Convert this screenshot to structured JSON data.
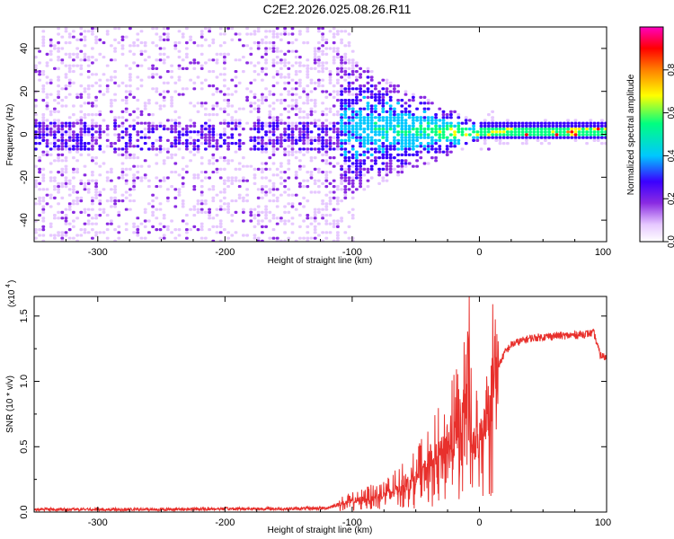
{
  "title": "C2E2.2026.025.08.26.R11",
  "chart_data": [
    {
      "type": "heatmap",
      "title": "C2E2.2026.025.08.26.R11",
      "xlabel": "Height of straight line (km)",
      "ylabel": "Frequency (Hz)",
      "xlim": [
        -350,
        100
      ],
      "ylim": [
        -50,
        50
      ],
      "x_ticks": [
        -300,
        -200,
        -100,
        0,
        100
      ],
      "y_ticks": [
        -40,
        -20,
        0,
        20,
        40
      ],
      "x_tick_labels": [
        "-300",
        "-200",
        "-100",
        "0",
        "100"
      ],
      "y_tick_labels": [
        "-40",
        "-20",
        "0",
        "20",
        "40"
      ],
      "colorbar": {
        "label": "Normalized spectral amplitude",
        "range": [
          0,
          1
        ],
        "ticks": [
          0.0,
          0.2,
          0.4,
          0.6,
          0.8
        ],
        "tick_labels": [
          "0.0",
          "0.2",
          "0.4",
          "0.6",
          "0.8"
        ],
        "colormap": [
          "#ffffff",
          "#e6c8ff",
          "#8a2be2",
          "#3a00ff",
          "#00c8ff",
          "#00ff80",
          "#ffff00",
          "#ff8000",
          "#ff0000",
          "#ff00c0"
        ]
      },
      "features": {
        "dense_noise_range_km": [
          -350,
          -110
        ],
        "narrowing_band_range_km": [
          -110,
          0
        ],
        "carrier_frequency_hz": 2,
        "peak_amplitude": 1.0
      }
    },
    {
      "type": "line",
      "xlabel": "Height of straight line (km)",
      "ylabel": "SNR (10 * v/v)",
      "y_multiplier_label": "(x10",
      "y_multiplier_exp": "4",
      "xlim": [
        -350,
        100
      ],
      "ylim": [
        0,
        1.65
      ],
      "x_ticks": [
        -300,
        -200,
        -100,
        0,
        100
      ],
      "y_ticks": [
        0.0,
        0.5,
        1.0,
        1.5
      ],
      "x_tick_labels": [
        "-300",
        "-200",
        "-100",
        "0",
        "100"
      ],
      "y_tick_labels": [
        "0.0",
        "0.5",
        "1.0",
        "1.5"
      ],
      "series": [
        {
          "color": "#e8302c",
          "x": [
            -350,
            -300,
            -250,
            -200,
            -150,
            -120,
            -110,
            -100,
            -90,
            -80,
            -70,
            -60,
            -50,
            -40,
            -30,
            -20,
            -15,
            -10,
            -5,
            0,
            5,
            10,
            15,
            20,
            25,
            30,
            40,
            50,
            60,
            70,
            80,
            90,
            95,
            100
          ],
          "y": [
            0.02,
            0.02,
            0.02,
            0.025,
            0.025,
            0.03,
            0.06,
            0.08,
            0.1,
            0.12,
            0.15,
            0.2,
            0.25,
            0.35,
            0.45,
            0.55,
            0.65,
            0.8,
            0.5,
            0.55,
            0.75,
            0.95,
            1.12,
            1.22,
            1.28,
            1.3,
            1.33,
            1.34,
            1.35,
            1.35,
            1.36,
            1.37,
            1.2,
            1.18
          ],
          "spikes": [
            {
              "x": -8,
              "y": 1.65
            },
            {
              "x": -12,
              "y": 1.3
            },
            {
              "x": -20,
              "y": 1.05
            }
          ]
        }
      ]
    }
  ]
}
